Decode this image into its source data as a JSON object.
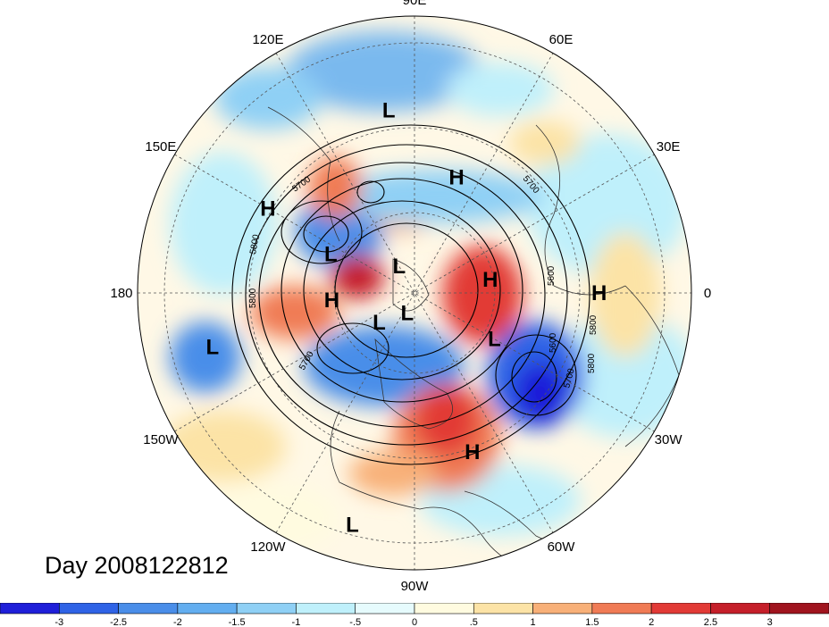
{
  "title": "Day 2008122812",
  "map": {
    "projection": "north-polar-stereographic",
    "longitude_labels": [
      {
        "text": "90E",
        "lon": 90
      },
      {
        "text": "60E",
        "lon": 60
      },
      {
        "text": "30E",
        "lon": 30
      },
      {
        "text": "0",
        "lon": 0
      },
      {
        "text": "30W",
        "lon": -30
      },
      {
        "text": "60W",
        "lon": -60
      },
      {
        "text": "90W",
        "lon": -90
      },
      {
        "text": "120W",
        "lon": -120
      },
      {
        "text": "150W",
        "lon": -150
      },
      {
        "text": "180",
        "lon": 180
      },
      {
        "text": "150E",
        "lon": 150
      },
      {
        "text": "120E",
        "lon": 120
      }
    ],
    "pressure_systems": [
      {
        "type": "L",
        "lon": 98,
        "lat": 30
      },
      {
        "type": "H",
        "lon": 70,
        "lat": 50
      },
      {
        "type": "H",
        "lon": 150,
        "lat": 35
      },
      {
        "type": "L",
        "lon": 155,
        "lat": 60
      },
      {
        "type": "L",
        "lon": 120,
        "lat": 80
      },
      {
        "type": "H",
        "lon": -175,
        "lat": 63
      },
      {
        "type": "H",
        "lon": 10,
        "lat": 65
      },
      {
        "type": "H",
        "lon": 0,
        "lat": 30
      },
      {
        "type": "L",
        "lon": -140,
        "lat": 75
      },
      {
        "type": "L",
        "lon": -110,
        "lat": 83
      },
      {
        "type": "L",
        "lon": -30,
        "lat": 60
      },
      {
        "type": "L",
        "lon": -165,
        "lat": 22
      },
      {
        "type": "H",
        "lon": -70,
        "lat": 35
      },
      {
        "type": "L",
        "lon": -105,
        "lat": 12
      }
    ],
    "contour_labels": [
      "5700",
      "5800",
      "5800",
      "5700",
      "5700",
      "5600",
      "5600",
      "5800",
      "5700",
      "5800"
    ]
  },
  "colorbar": {
    "ticks": [
      "-3",
      "-2.5",
      "-2",
      "-1.5",
      "-1",
      "-.5",
      "0",
      ".5",
      "1",
      "1.5",
      "2",
      "2.5",
      "3"
    ],
    "colors": [
      "#1f1fd9",
      "#2f63e6",
      "#4a8ee9",
      "#63aef0",
      "#8fd0f5",
      "#bff0fb",
      "#e6fbfd",
      "#fffbe0",
      "#fce3a6",
      "#f8b078",
      "#f07b55",
      "#e23a36",
      "#c51f2a",
      "#a0141e"
    ]
  }
}
